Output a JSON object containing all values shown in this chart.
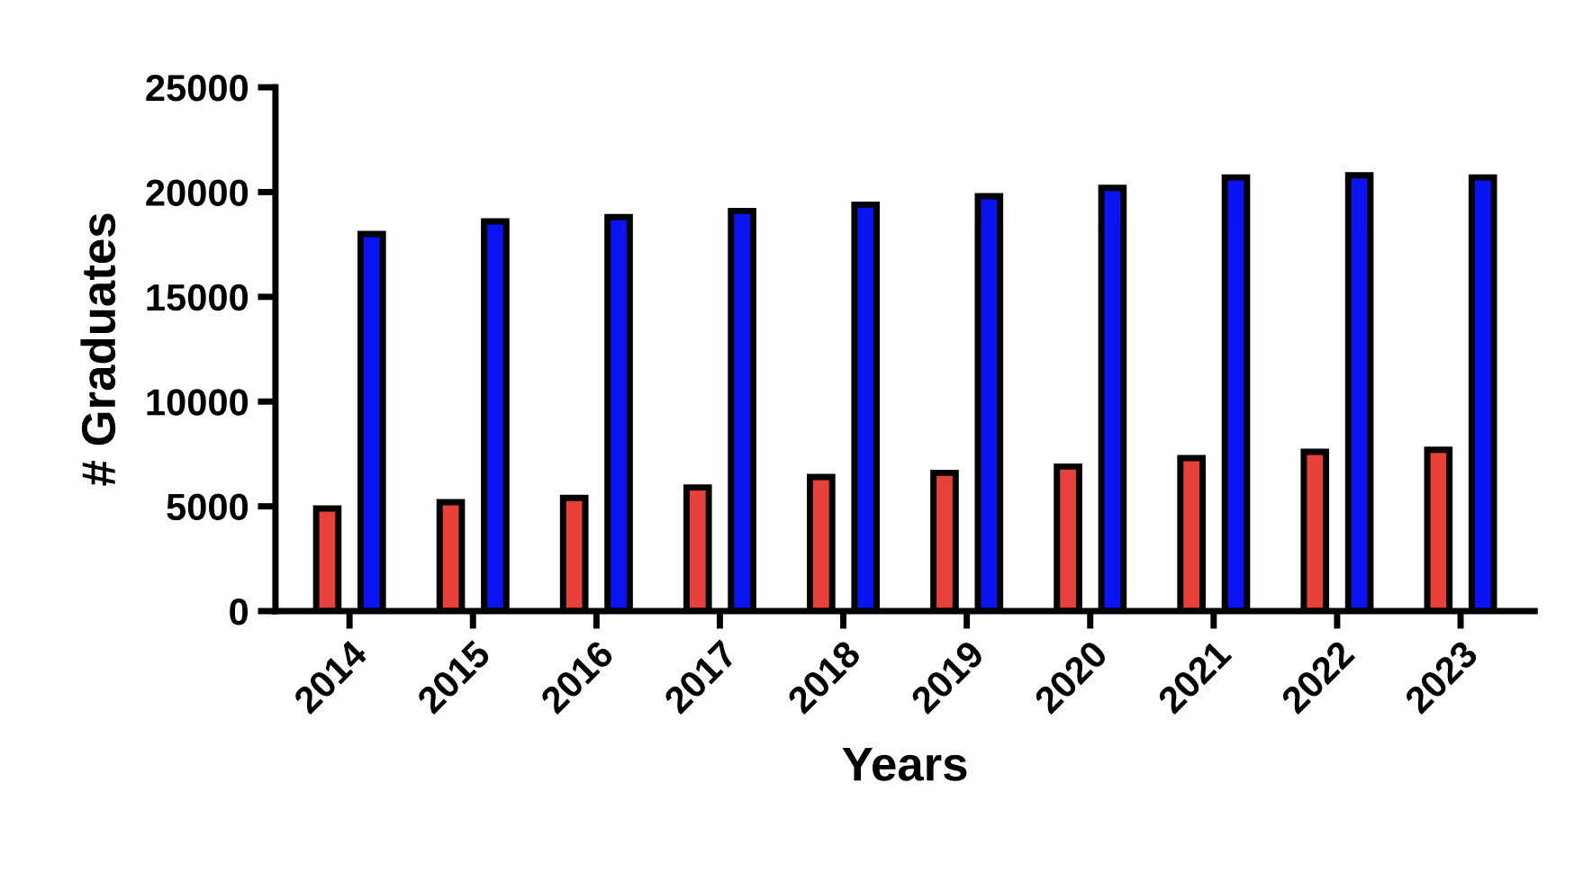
{
  "chart_data": {
    "type": "bar",
    "xlabel": "Years",
    "ylabel": "# Graduates",
    "categories": [
      "2014",
      "2015",
      "2016",
      "2017",
      "2018",
      "2019",
      "2020",
      "2021",
      "2022",
      "2023"
    ],
    "series": [
      {
        "color": "#e8413c",
        "values": [
          4900,
          5200,
          5400,
          5900,
          6400,
          6600,
          6900,
          7300,
          7600,
          7700
        ]
      },
      {
        "color": "#0a14f0",
        "values": [
          18000,
          18600,
          18800,
          19100,
          19400,
          19800,
          20200,
          20700,
          20800,
          20700
        ]
      }
    ],
    "ylim": [
      0,
      25000
    ],
    "yticks": [
      0,
      5000,
      10000,
      15000,
      20000,
      25000
    ],
    "grid": false,
    "legend": false
  }
}
